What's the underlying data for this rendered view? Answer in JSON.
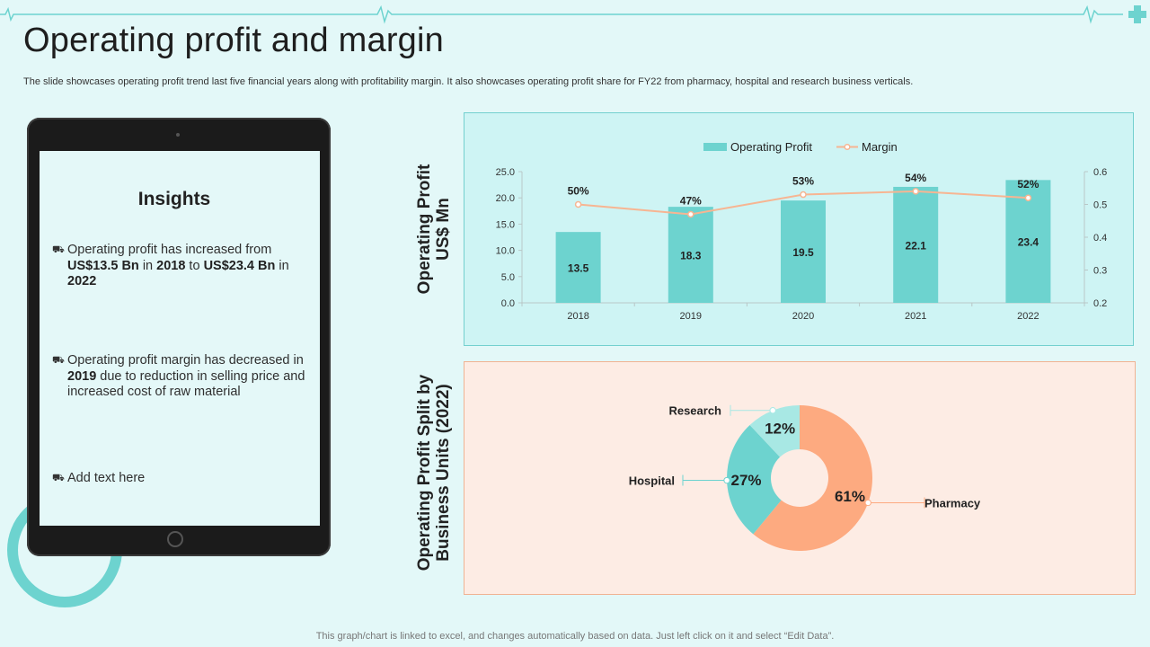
{
  "page": {
    "title": "Operating profit and margin",
    "subtitle": "The slide showcases operating profit trend last five financial years along with profitability margin. It also showcases operating profit share for FY22 from pharmacy, hospital and research business verticals.",
    "footer": "This graph/chart is linked to excel,  and changes automatically based on data. Just left click on it and select “Edit Data”."
  },
  "insights": {
    "title": "Insights",
    "bullet_icon": "car-icon",
    "b1": {
      "p1": "Operating profit has increased from ",
      "s1": "US$13.5 Bn",
      "p2": " in ",
      "s2": "2018",
      "p3": " to ",
      "s3": "US$23.4 Bn",
      "p4": " in ",
      "s4": "2022"
    },
    "b2": {
      "p1": "Operating profit margin has decreased in ",
      "s1": "2019",
      "p2": " due to reduction in selling price and increased cost of raw material"
    },
    "b3": {
      "p1": "Add text here"
    }
  },
  "axis_titles": {
    "top": [
      "Operating Profit",
      "US$ Mn"
    ],
    "bottom": [
      "Operating Profit Split by",
      "Business Units (2022)"
    ]
  },
  "colors": {
    "bar": "#6dd3cf",
    "margin_line": "#f7b592",
    "pharmacy": "#fdaa80",
    "hospital": "#6dd3cf",
    "research": "#a8e8e4"
  },
  "chart_data": [
    {
      "type": "bar",
      "combo": "bar+line (secondary axis)",
      "categories": [
        "2018",
        "2019",
        "2020",
        "2021",
        "2022"
      ],
      "series": [
        {
          "name": "Operating Profit",
          "type": "bar",
          "axis": "left",
          "values": [
            13.5,
            18.3,
            19.5,
            22.1,
            23.4
          ],
          "labels": [
            "13.5",
            "18.3",
            "19.5",
            "22.1",
            "23.4"
          ]
        },
        {
          "name": "Margin",
          "type": "line",
          "axis": "right",
          "values": [
            0.5,
            0.47,
            0.53,
            0.54,
            0.52
          ],
          "labels": [
            "50%",
            "47%",
            "53%",
            "54%",
            "52%"
          ]
        }
      ],
      "y_left": {
        "min": 0,
        "max": 25,
        "ticks": [
          "0.0",
          "5.0",
          "10.0",
          "15.0",
          "20.0",
          "25.0"
        ]
      },
      "y_right": {
        "min": 0.2,
        "max": 0.6,
        "ticks": [
          "0.2",
          "0.3",
          "0.4",
          "0.5",
          "0.6"
        ]
      },
      "legend": "top-center"
    },
    {
      "type": "pie",
      "variant": "donut",
      "title": "Operating Profit Split by Business Units (2022)",
      "slices": [
        {
          "name": "Pharmacy",
          "value": 61,
          "label": "61%"
        },
        {
          "name": "Hospital",
          "value": 27,
          "label": "27%"
        },
        {
          "name": "Research",
          "value": 12,
          "label": "12%"
        }
      ]
    }
  ]
}
